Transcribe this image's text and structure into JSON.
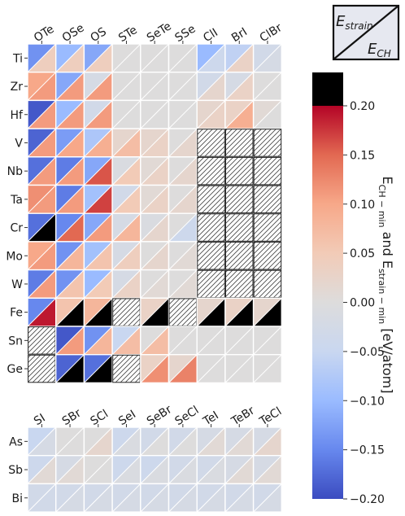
{
  "chart_data": {
    "type": "heatmap",
    "encoding": "split-cell: upper-left triangle = E_strain-min, lower-right triangle = E_CH-min; 'X' = hatched (not computed)",
    "legend_key": {
      "upper_label": "E",
      "upper_sub": "strain",
      "lower_label": "E",
      "lower_sub": "CH"
    },
    "colorbar": {
      "label_main": "E",
      "label_sub1": "CH − min",
      "label_mid": " and E",
      "label_sub2": "strain − min",
      "label_unit": " [eV/atom]",
      "min": -0.2,
      "max": 0.2,
      "ticks": [
        "−0.20",
        "−0.15",
        "−0.10",
        "−0.05",
        "0.00",
        "0.05",
        "0.10",
        "0.15",
        "0.20"
      ],
      "tick_values": [
        -0.2,
        -0.15,
        -0.1,
        -0.05,
        0,
        0.05,
        0.1,
        0.15,
        0.2
      ],
      "overflow_color": "#000000"
    },
    "panels": [
      {
        "columns": [
          "OTe",
          "OSe",
          "OS",
          "STe",
          "SeTe",
          "SSe",
          "ClI",
          "BrI",
          "ClBr"
        ],
        "rows": [
          "Ti",
          "Zr",
          "Hf",
          "V",
          "Nb",
          "Ta",
          "Cr",
          "Mo",
          "W",
          "Fe",
          "Sn",
          "Ge"
        ],
        "strain": [
          [
            -0.14,
            -0.1,
            -0.12,
            0,
            0,
            0,
            -0.1,
            -0.06,
            -0.03
          ],
          [
            0.1,
            -0.12,
            -0.02,
            0,
            0,
            0,
            -0.03,
            -0.02,
            0
          ],
          [
            -0.19,
            -0.1,
            -0.03,
            0,
            0,
            0,
            0.02,
            0.03,
            0.01
          ],
          [
            -0.18,
            -0.13,
            -0.08,
            0.02,
            0.02,
            0,
            "X",
            "X",
            "X"
          ],
          [
            -0.17,
            -0.16,
            -0.12,
            -0.01,
            0.01,
            0,
            "X",
            "X",
            "X"
          ],
          [
            0.12,
            -0.16,
            -0.09,
            -0.03,
            0.01,
            0,
            "X",
            "X",
            "X"
          ],
          [
            -0.17,
            -0.15,
            -0.12,
            -0.02,
            -0.01,
            0,
            "X",
            "X",
            "X"
          ],
          [
            0.1,
            -0.14,
            -0.09,
            -0.02,
            0,
            0,
            "X",
            "X",
            "X"
          ],
          [
            -0.16,
            -0.14,
            -0.1,
            -0.02,
            0,
            0,
            "X",
            "X",
            "X"
          ],
          [
            -0.15,
            0.06,
            0.08,
            "X",
            0.03,
            "X",
            0.02,
            0.03,
            0.02
          ],
          [
            "X",
            -0.19,
            -0.14,
            -0.05,
            0,
            0,
            0,
            0,
            0
          ],
          [
            "X",
            -0.18,
            -0.17,
            "X",
            0.03,
            0.02,
            0,
            0,
            0
          ]
        ],
        "ch": [
          [
            0.04,
            0.04,
            0.04,
            0,
            0,
            0,
            -0.04,
            0.03,
            -0.02
          ],
          [
            0.11,
            0.11,
            0.11,
            0,
            0,
            0,
            0.02,
            0.03,
            0
          ],
          [
            0.11,
            0.11,
            0.11,
            0,
            0,
            0,
            0.03,
            0.09,
            0
          ],
          [
            0.11,
            0.1,
            0.09,
            0.07,
            0.03,
            0.02,
            "X",
            "X",
            "X"
          ],
          [
            0.11,
            0.11,
            0.16,
            0.05,
            0.03,
            0.02,
            "X",
            "X",
            "X"
          ],
          [
            0.11,
            0.11,
            0.17,
            0.05,
            0.03,
            0.02,
            "X",
            "X",
            "X"
          ],
          [
            0.3,
            0.15,
            0.11,
            0.08,
            0.02,
            -0.04,
            "X",
            "X",
            "X"
          ],
          [
            0.11,
            0.08,
            0.06,
            0.04,
            0.02,
            0.01,
            "X",
            "X",
            "X"
          ],
          [
            0.11,
            0.06,
            0.05,
            0.03,
            0.01,
            0.01,
            "X",
            "X",
            "X"
          ],
          [
            0.19,
            0.3,
            0.3,
            "X",
            0.3,
            "X",
            0.3,
            0.3,
            0.3
          ],
          [
            "X",
            0.11,
            0.08,
            0.07,
            0.07,
            0,
            0,
            0,
            0
          ],
          [
            "X",
            0.3,
            0.3,
            "X",
            0.12,
            0.13,
            0,
            0,
            0
          ]
        ]
      },
      {
        "columns": [
          "SI",
          "SBr",
          "SCl",
          "SeI",
          "SeBr",
          "SeCl",
          "TeI",
          "TeBr",
          "TeCl"
        ],
        "rows": [
          "As",
          "Sb",
          "Bi"
        ],
        "strain": [
          [
            -0.05,
            0,
            0,
            -0.04,
            -0.03,
            -0.03,
            -0.02,
            -0.02,
            -0.02
          ],
          [
            -0.04,
            -0.02,
            0,
            -0.04,
            -0.04,
            -0.03,
            -0.03,
            -0.02,
            -0.02
          ],
          [
            -0.03,
            -0.03,
            -0.03,
            -0.03,
            -0.03,
            -0.03,
            -0.03,
            -0.03,
            -0.03
          ]
        ],
        "ch": [
          [
            -0.02,
            0,
            0.02,
            -0.01,
            0,
            0,
            0.01,
            0.01,
            0.02
          ],
          [
            0.01,
            0.01,
            0,
            -0.01,
            -0.01,
            -0.01,
            -0.01,
            0.01,
            0.01
          ],
          [
            -0.03,
            -0.02,
            -0.02,
            -0.02,
            -0.02,
            -0.02,
            -0.02,
            -0.02,
            -0.02
          ]
        ]
      }
    ]
  }
}
